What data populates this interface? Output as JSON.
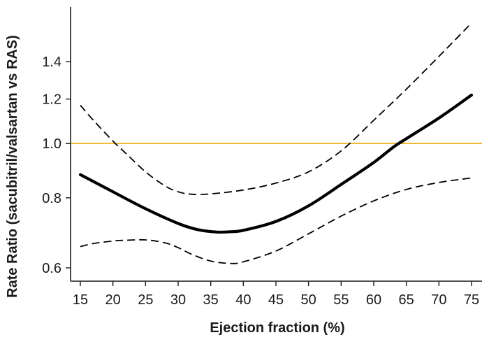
{
  "chart_data": {
    "type": "line",
    "title": "",
    "xlabel": "Ejection fraction (%)",
    "ylabel": "Rate Ratio (sacubitril/valsartan vs RAS)",
    "y_scale": "log",
    "xlim": [
      14.5,
      76
    ],
    "ylim": [
      0.57,
      1.68
    ],
    "x_ticks": [
      15,
      20,
      25,
      30,
      35,
      40,
      45,
      50,
      55,
      60,
      65,
      70,
      75
    ],
    "x_tick_labels": [
      "15",
      "20",
      "25",
      "30",
      "35",
      "40",
      "45",
      "50",
      "55",
      "60",
      "65",
      "70",
      "75"
    ],
    "y_ticks": [
      0.6,
      0.8,
      1.0,
      1.2,
      1.4
    ],
    "y_tick_labels": [
      "0.6",
      "0.8",
      "1.0",
      "1.2",
      "1.4"
    ],
    "reference_line": {
      "y": 1.0,
      "color": "#f0b429"
    },
    "grid": false,
    "series": [
      {
        "role": "estimate",
        "style": "solid-thick",
        "x": [
          15,
          20,
          25,
          30,
          33,
          36,
          38,
          40,
          45,
          50,
          55,
          60,
          63,
          65,
          70,
          75
        ],
        "y": [
          0.88,
          0.82,
          0.765,
          0.72,
          0.702,
          0.695,
          0.696,
          0.7,
          0.726,
          0.774,
          0.845,
          0.925,
          0.985,
          1.02,
          1.11,
          1.22
        ]
      },
      {
        "role": "upper-ci",
        "style": "dashed",
        "x": [
          15,
          17,
          20,
          22,
          25,
          28,
          30,
          32,
          35,
          40,
          45,
          50,
          55,
          60,
          65,
          70,
          75
        ],
        "y": [
          1.17,
          1.1,
          1.01,
          0.96,
          0.89,
          0.84,
          0.82,
          0.812,
          0.813,
          0.826,
          0.85,
          0.89,
          0.97,
          1.1,
          1.25,
          1.43,
          1.64
        ]
      },
      {
        "role": "lower-ci",
        "style": "dashed",
        "x": [
          15,
          17,
          20,
          22,
          25,
          28,
          30,
          32,
          35,
          38,
          40,
          45,
          50,
          55,
          60,
          65,
          70,
          75
        ],
        "y": [
          0.655,
          0.663,
          0.67,
          0.672,
          0.673,
          0.665,
          0.652,
          0.635,
          0.617,
          0.611,
          0.615,
          0.643,
          0.69,
          0.742,
          0.79,
          0.828,
          0.852,
          0.868
        ]
      }
    ]
  }
}
